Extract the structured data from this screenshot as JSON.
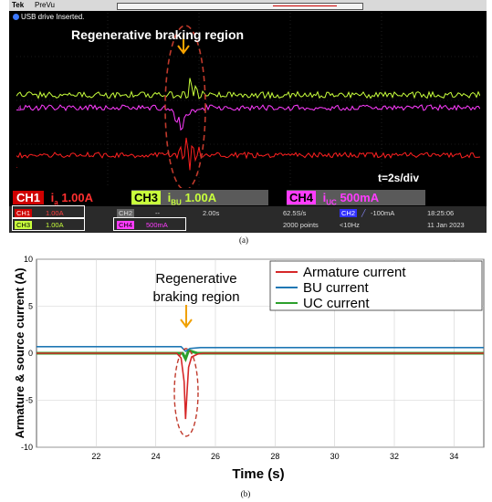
{
  "panel_a": {
    "brand": "Tek",
    "mode": "PreVu",
    "message": "USB drive Inserted.",
    "annotation": "Regenerative braking region",
    "time_div": "t=2s/div",
    "ch1_label": "CH1",
    "ch1_var": "i",
    "ch1_sub": "a",
    "ch1_scale": "1.00A",
    "ch3_label": "CH3",
    "ch3_var": "i",
    "ch3_sub": "BU",
    "ch3_scale": "1.00A",
    "ch4_label": "CH4",
    "ch4_var": "i",
    "ch4_sub": "UC",
    "ch4_scale": "500mA",
    "ch1_small": "CH1",
    "ch1_small_val": "1.00A",
    "ch3_small": "CH3",
    "ch3_small_val": "1.00A",
    "ch4_small": "CH4",
    "ch4_small_val": "500mA",
    "ch2_label": "CH2",
    "dash": "--",
    "timebase": "2.00s",
    "sample_rate": "62.5S/s",
    "points": "2000 points",
    "trig_ch": "CH2",
    "trig_level": "-100mA",
    "freq": "<10Hz",
    "time": "18:25:06",
    "date": "11 Jan 2023",
    "ch3_marker": "3",
    "ch4_marker": "4",
    "ch1_marker": "1",
    "caption": "(a)",
    "colors": {
      "ch1": "#ff2020",
      "ch3": "#c8ff3c",
      "ch4": "#ff3cff",
      "ann": "#ffa500"
    }
  },
  "chart_data": {
    "type": "line",
    "xlabel": "Time (s)",
    "ylabel": "Armature & source current (A)",
    "xlim": [
      20,
      35
    ],
    "ylim": [
      -10,
      10
    ],
    "xticks": [
      22,
      24,
      26,
      28,
      30,
      32,
      34
    ],
    "yticks": [
      10,
      5,
      0,
      -5,
      -10
    ],
    "grid": true,
    "legend_position": "top-right",
    "annotation": {
      "line1": "Regenerative",
      "line2": "braking region",
      "x": 25.0
    },
    "series": [
      {
        "name": "Armature current",
        "color": "#d62728",
        "x": [
          20,
          24.7,
          24.85,
          24.95,
          25.0,
          25.05,
          25.1,
          25.2,
          25.4,
          25.6,
          35
        ],
        "y": [
          0.0,
          0.0,
          -0.5,
          -3.0,
          -7.0,
          -4.0,
          -1.5,
          -0.4,
          -0.1,
          0.0,
          0.0
        ]
      },
      {
        "name": "BU current",
        "color": "#1f77b4",
        "x": [
          20,
          24.85,
          25.0,
          25.15,
          25.5,
          35
        ],
        "y": [
          0.7,
          0.7,
          0.2,
          0.5,
          0.6,
          0.6
        ]
      },
      {
        "name": "UC current",
        "color": "#2ca02c",
        "x": [
          20,
          24.9,
          25.0,
          25.1,
          25.4,
          35
        ],
        "y": [
          0.0,
          0.0,
          -0.6,
          0.3,
          0.0,
          0.0
        ]
      }
    ],
    "caption": "(b)"
  }
}
